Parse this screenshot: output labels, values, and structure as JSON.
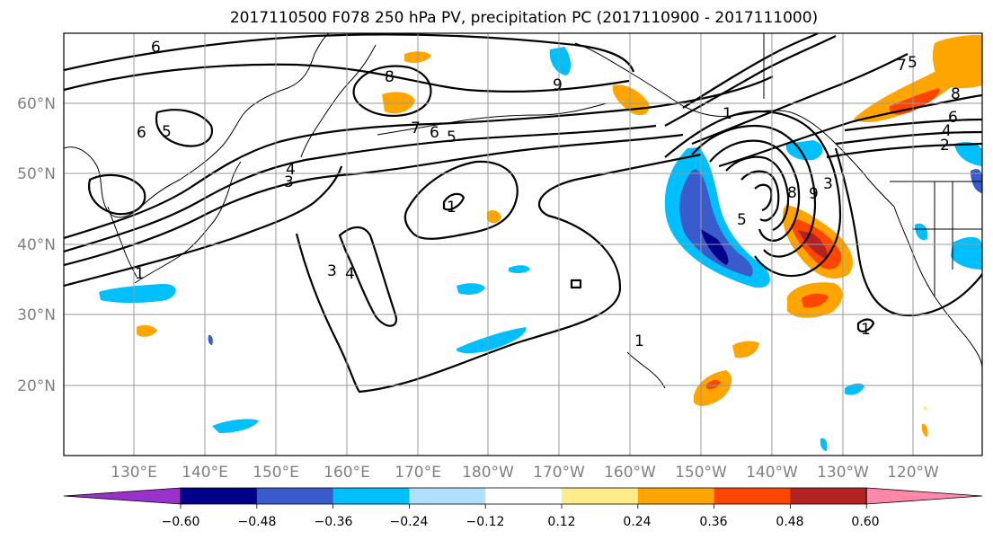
{
  "title": "2017110500 F078 250 hPa PV, precipitation PC (2017110900 - 2017111000)",
  "longitude_labels": [
    "130°E",
    "140°E",
    "150°E",
    "160°E",
    "170°E",
    "180°W",
    "170°W",
    "160°W",
    "150°W",
    "140°W",
    "130°W",
    "120°W"
  ],
  "latitude_labels": [
    "20°N",
    "30°N",
    "40°N",
    "50°N",
    "60°N"
  ],
  "colorbar": {
    "tick_labels": [
      "−0.60",
      "−0.48",
      "−0.36",
      "−0.24",
      "−0.12",
      "0.12",
      "0.24",
      "0.36",
      "0.48",
      "0.60"
    ],
    "colors": [
      "#9932CC",
      "#00008B",
      "#3A5BCC",
      "#00BFFF",
      "#B0E0FF",
      "#FFFFFF",
      "#FFEC8B",
      "#FFA500",
      "#FF4500",
      "#B22222",
      "#FF88AA"
    ]
  },
  "pv_contour_labels": [
    {
      "text": "6"
    },
    {
      "text": "6"
    },
    {
      "text": "5"
    },
    {
      "text": "7"
    },
    {
      "text": "6"
    },
    {
      "text": "5"
    },
    {
      "text": "4"
    },
    {
      "text": "3"
    },
    {
      "text": "1"
    },
    {
      "text": "3"
    },
    {
      "text": "4"
    },
    {
      "text": "1"
    },
    {
      "text": "8"
    },
    {
      "text": "9"
    },
    {
      "text": "1"
    },
    {
      "text": "8"
    },
    {
      "text": "9"
    },
    {
      "text": "5"
    },
    {
      "text": "3"
    },
    {
      "text": "6"
    },
    {
      "text": "4"
    },
    {
      "text": "2"
    },
    {
      "text": "1"
    },
    {
      "text": "1"
    },
    {
      "text": "7"
    },
    {
      "text": "5"
    },
    {
      "text": "8"
    }
  ]
}
